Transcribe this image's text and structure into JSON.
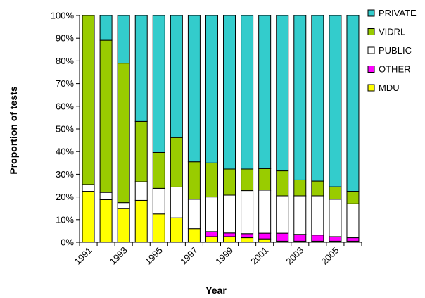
{
  "chart_data": {
    "type": "bar",
    "stacked": true,
    "percent": true,
    "title": "",
    "xlabel": "Year",
    "ylabel": "Proportion of tests",
    "ylim": [
      0,
      100
    ],
    "yticks": [
      "0%",
      "10%",
      "20%",
      "30%",
      "40%",
      "50%",
      "60%",
      "70%",
      "80%",
      "90%",
      "100%"
    ],
    "categories": [
      "1991",
      "1992",
      "1993",
      "1994",
      "1995",
      "1996",
      "1997",
      "1998",
      "1999",
      "2000",
      "2001",
      "2002",
      "2003",
      "2004",
      "2005",
      "2006"
    ],
    "xtick_labels": [
      "1991",
      "",
      "1993",
      "",
      "1995",
      "",
      "1997",
      "",
      "1999",
      "",
      "2001",
      "",
      "2003",
      "",
      "2005",
      ""
    ],
    "legend_position": "right",
    "series": [
      {
        "name": "MDU",
        "color": "#ffff00",
        "values": [
          22.5,
          18.8,
          15.0,
          18.5,
          12.5,
          10.8,
          6.0,
          2.5,
          2.5,
          2.0,
          1.5,
          0.5,
          0.5,
          0.5,
          0.5,
          0.5
        ]
      },
      {
        "name": "OTHER",
        "color": "#ff00ff",
        "values": [
          0,
          0,
          0,
          0,
          0,
          0,
          0,
          2.2,
          1.6,
          1.8,
          2.5,
          3.5,
          3.0,
          2.7,
          2.0,
          1.5
        ]
      },
      {
        "name": "PUBLIC",
        "color": "#ffffff",
        "values": [
          3.0,
          3.2,
          2.5,
          8.2,
          11.3,
          13.6,
          13.0,
          15.3,
          16.7,
          19.0,
          19.0,
          16.5,
          17.0,
          17.3,
          16.5,
          15.0
        ]
      },
      {
        "name": "VIDRL",
        "color": "#99cc00",
        "values": [
          74.5,
          67.1,
          61.5,
          26.6,
          15.8,
          21.8,
          16.5,
          15.0,
          11.5,
          9.5,
          9.5,
          11.0,
          7.0,
          6.5,
          5.5,
          5.5
        ]
      },
      {
        "name": "PRIVATE",
        "color": "#33cccc",
        "values": [
          0,
          10.9,
          21.0,
          46.7,
          60.4,
          53.8,
          64.5,
          65.0,
          67.7,
          67.7,
          67.5,
          68.5,
          72.5,
          73.0,
          75.5,
          77.5
        ]
      }
    ],
    "legend_order": [
      "PRIVATE",
      "VIDRL",
      "PUBLIC",
      "OTHER",
      "MDU"
    ]
  }
}
